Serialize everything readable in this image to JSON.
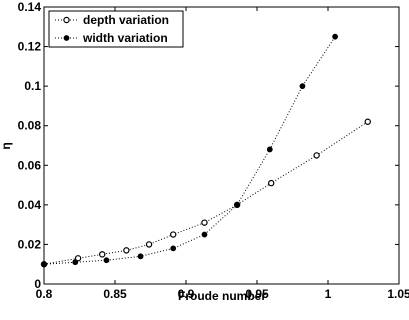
{
  "chart_data": {
    "type": "line",
    "xlabel": "Froude number",
    "ylabel": "η",
    "xlim": [
      0.8,
      1.05
    ],
    "ylim": [
      0,
      0.14
    ],
    "xticks": [
      "0.8",
      "0.85",
      "0.9",
      "0.95",
      "1",
      "1.05"
    ],
    "xtick_values": [
      0.8,
      0.85,
      0.9,
      0.95,
      1.0,
      1.05
    ],
    "yticks": [
      "0",
      "0.02",
      "0.04",
      "0.06",
      "0.08",
      "0.1",
      "0.12",
      "0.14"
    ],
    "ytick_values": [
      0,
      0.02,
      0.04,
      0.06,
      0.08,
      0.1,
      0.12,
      0.14
    ],
    "grid": false,
    "legend_position": "top-left",
    "series": [
      {
        "name": "depth variation",
        "marker": "open-circle",
        "line_style": "dotted",
        "x": [
          0.8,
          0.824,
          0.841,
          0.858,
          0.874,
          0.891,
          0.913,
          0.936,
          0.96,
          0.992,
          1.028
        ],
        "y": [
          0.01,
          0.013,
          0.015,
          0.017,
          0.02,
          0.025,
          0.031,
          0.04,
          0.051,
          0.065,
          0.082
        ]
      },
      {
        "name": "width variation",
        "marker": "filled-circle",
        "line_style": "dotted",
        "x": [
          0.8,
          0.822,
          0.844,
          0.868,
          0.891,
          0.913,
          0.936,
          0.959,
          0.982,
          1.005
        ],
        "y": [
          0.01,
          0.011,
          0.012,
          0.014,
          0.018,
          0.025,
          0.04,
          0.068,
          0.1,
          0.125
        ]
      }
    ]
  }
}
